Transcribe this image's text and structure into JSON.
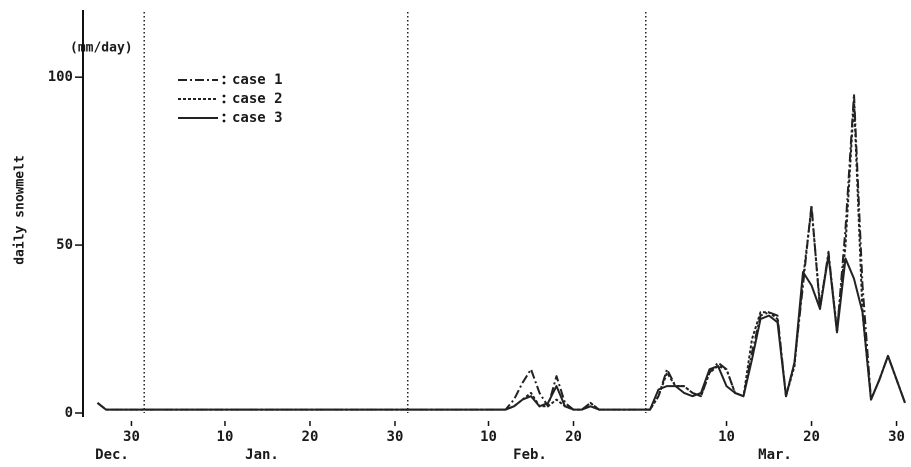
{
  "chart_data": {
    "type": "line",
    "y_label": "daily snowmelt",
    "y_unit": "(mm/day)",
    "months": [
      "Dec.",
      "Jan.",
      "Feb.",
      "Mar."
    ],
    "x": [
      -5,
      -4,
      40,
      41,
      42,
      43,
      44,
      45,
      46,
      47,
      48,
      49,
      50,
      51,
      52,
      53,
      54,
      55,
      56,
      57,
      58,
      59,
      60,
      61,
      62,
      63,
      64,
      65,
      66,
      67,
      68,
      69,
      70,
      71,
      72,
      73,
      74,
      75,
      76,
      77,
      78,
      79,
      80,
      81,
      82,
      83,
      84,
      85,
      86,
      87,
      88,
      89,
      90
    ],
    "series": [
      {
        "name": "case 1",
        "color": "#222222",
        "dash": "dashdot",
        "values": [
          3,
          1,
          1,
          1,
          1,
          1,
          4,
          9,
          13,
          6,
          2,
          11,
          3,
          1,
          1,
          3,
          1,
          1,
          1,
          1,
          1,
          1,
          1,
          5,
          13,
          8,
          8,
          6,
          5,
          12,
          15,
          13,
          6,
          5,
          18,
          29,
          30,
          29,
          5,
          15,
          38,
          62,
          31,
          48,
          24,
          55,
          95,
          38,
          4,
          10,
          17,
          10,
          3
        ]
      },
      {
        "name": "case 2",
        "color": "#222222",
        "dash": "dashed",
        "values": [
          3,
          1,
          1,
          1,
          1,
          1,
          2,
          4,
          6,
          2,
          2,
          4,
          2,
          1,
          1,
          3,
          1,
          1,
          1,
          1,
          1,
          1,
          1,
          5,
          12,
          8,
          8,
          6,
          5,
          12,
          14,
          13,
          6,
          5,
          22,
          30,
          30,
          28,
          5,
          14,
          40,
          61,
          32,
          47,
          25,
          50,
          93,
          30,
          4,
          10,
          17,
          10,
          3
        ]
      },
      {
        "name": "case 3",
        "color": "#222222",
        "dash": "solid",
        "values": [
          3,
          1,
          1,
          1,
          1,
          1,
          2,
          4,
          5,
          2,
          3,
          8,
          2,
          1,
          1,
          2,
          1,
          1,
          1,
          1,
          1,
          1,
          1,
          7,
          8,
          8,
          6,
          5,
          6,
          13,
          14,
          8,
          6,
          5,
          16,
          28,
          29,
          27,
          5,
          15,
          42,
          38,
          31,
          47,
          24,
          46,
          40,
          30,
          4,
          10,
          17,
          10,
          3
        ]
      }
    ],
    "vlines": [
      0.5,
      31.5,
      59.5
    ],
    "xlim": [
      -6.7,
      90.7
    ],
    "xticks": [
      {
        "value": -1,
        "label": "30"
      },
      10,
      20,
      30,
      {
        "value": 41,
        "label": "10"
      },
      {
        "value": 51,
        "label": "20"
      },
      {
        "value": 69,
        "label": "10"
      },
      {
        "value": 79,
        "label": "20"
      },
      {
        "value": 89,
        "label": "30"
      }
    ],
    "ylim": [
      0,
      120
    ],
    "yticks": [
      0,
      50,
      100
    ]
  }
}
